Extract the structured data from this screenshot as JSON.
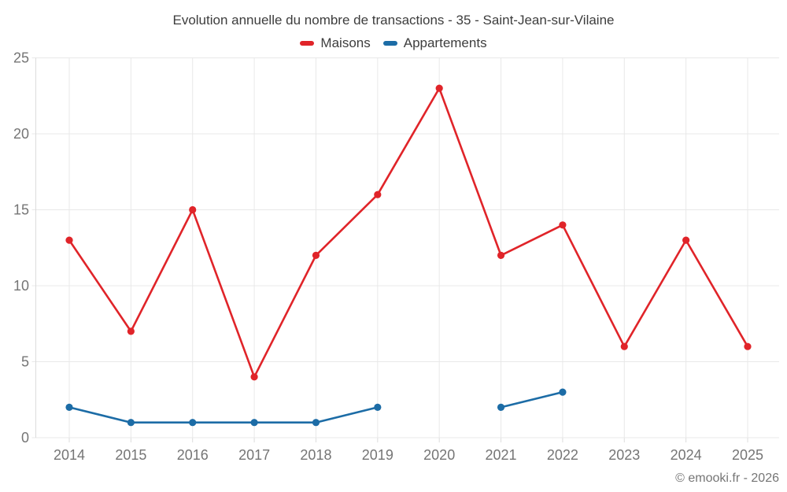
{
  "title": "Evolution annuelle du nombre de transactions - 35 - Saint-Jean-sur-Vilaine",
  "legend": {
    "items": [
      {
        "label": "Maisons",
        "color": "#e02429"
      },
      {
        "label": "Appartements",
        "color": "#1c6ca6"
      }
    ]
  },
  "footer": {
    "credit": "© emooki.fr - 2026"
  },
  "colors": {
    "background": "#ffffff",
    "grid": "#e8e8e8",
    "axis": "#dcdcdc",
    "tick_label": "#757575",
    "title_text": "#3d3d3d",
    "maisons": "#e02429",
    "appartements": "#1c6ca6"
  },
  "chart_data": {
    "type": "line",
    "title": "Evolution annuelle du nombre de transactions - 35 - Saint-Jean-sur-Vilaine",
    "x": [
      2014,
      2015,
      2016,
      2017,
      2018,
      2019,
      2020,
      2021,
      2022,
      2023,
      2024,
      2025
    ],
    "series": [
      {
        "name": "Maisons",
        "color": "#e02429",
        "values": [
          13,
          7,
          15,
          4,
          12,
          16,
          23,
          12,
          14,
          6,
          13,
          6
        ]
      },
      {
        "name": "Appartements",
        "color": "#1c6ca6",
        "values": [
          2,
          1,
          1,
          1,
          1,
          2,
          null,
          2,
          3,
          null,
          null,
          null
        ]
      }
    ],
    "xlabel": "",
    "ylabel": "",
    "ylim": [
      0,
      25
    ],
    "yticks": [
      0,
      5,
      10,
      15,
      20,
      25
    ],
    "grid": true,
    "legend_position": "top",
    "marker": "circle"
  }
}
